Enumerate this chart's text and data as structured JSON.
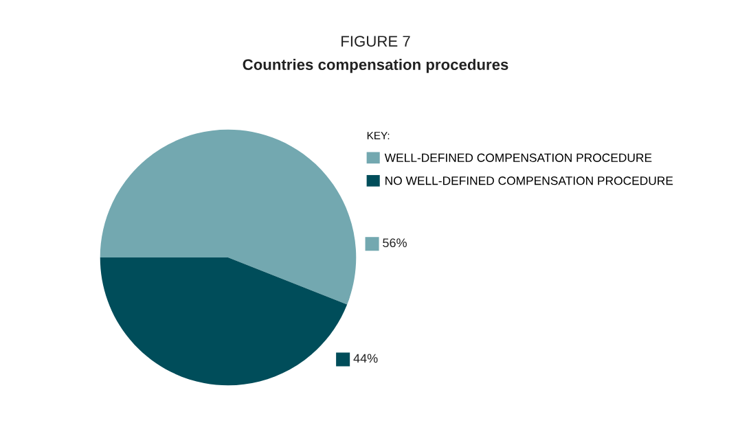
{
  "chart_data": {
    "type": "pie",
    "title": "FIGURE 7",
    "subtitle": "Countries compensation procedures",
    "legend_title": "KEY:",
    "legend": "top right",
    "categories": [
      "WELL-DEFINED COMPENSATION PROCEDURE",
      "NO WELL-DEFINED COMPENSATION PROCEDURE"
    ],
    "values": [
      56,
      44
    ],
    "colors": [
      "#73a8b0",
      "#004d5a"
    ],
    "value_labels": [
      "56%",
      "44%"
    ]
  }
}
